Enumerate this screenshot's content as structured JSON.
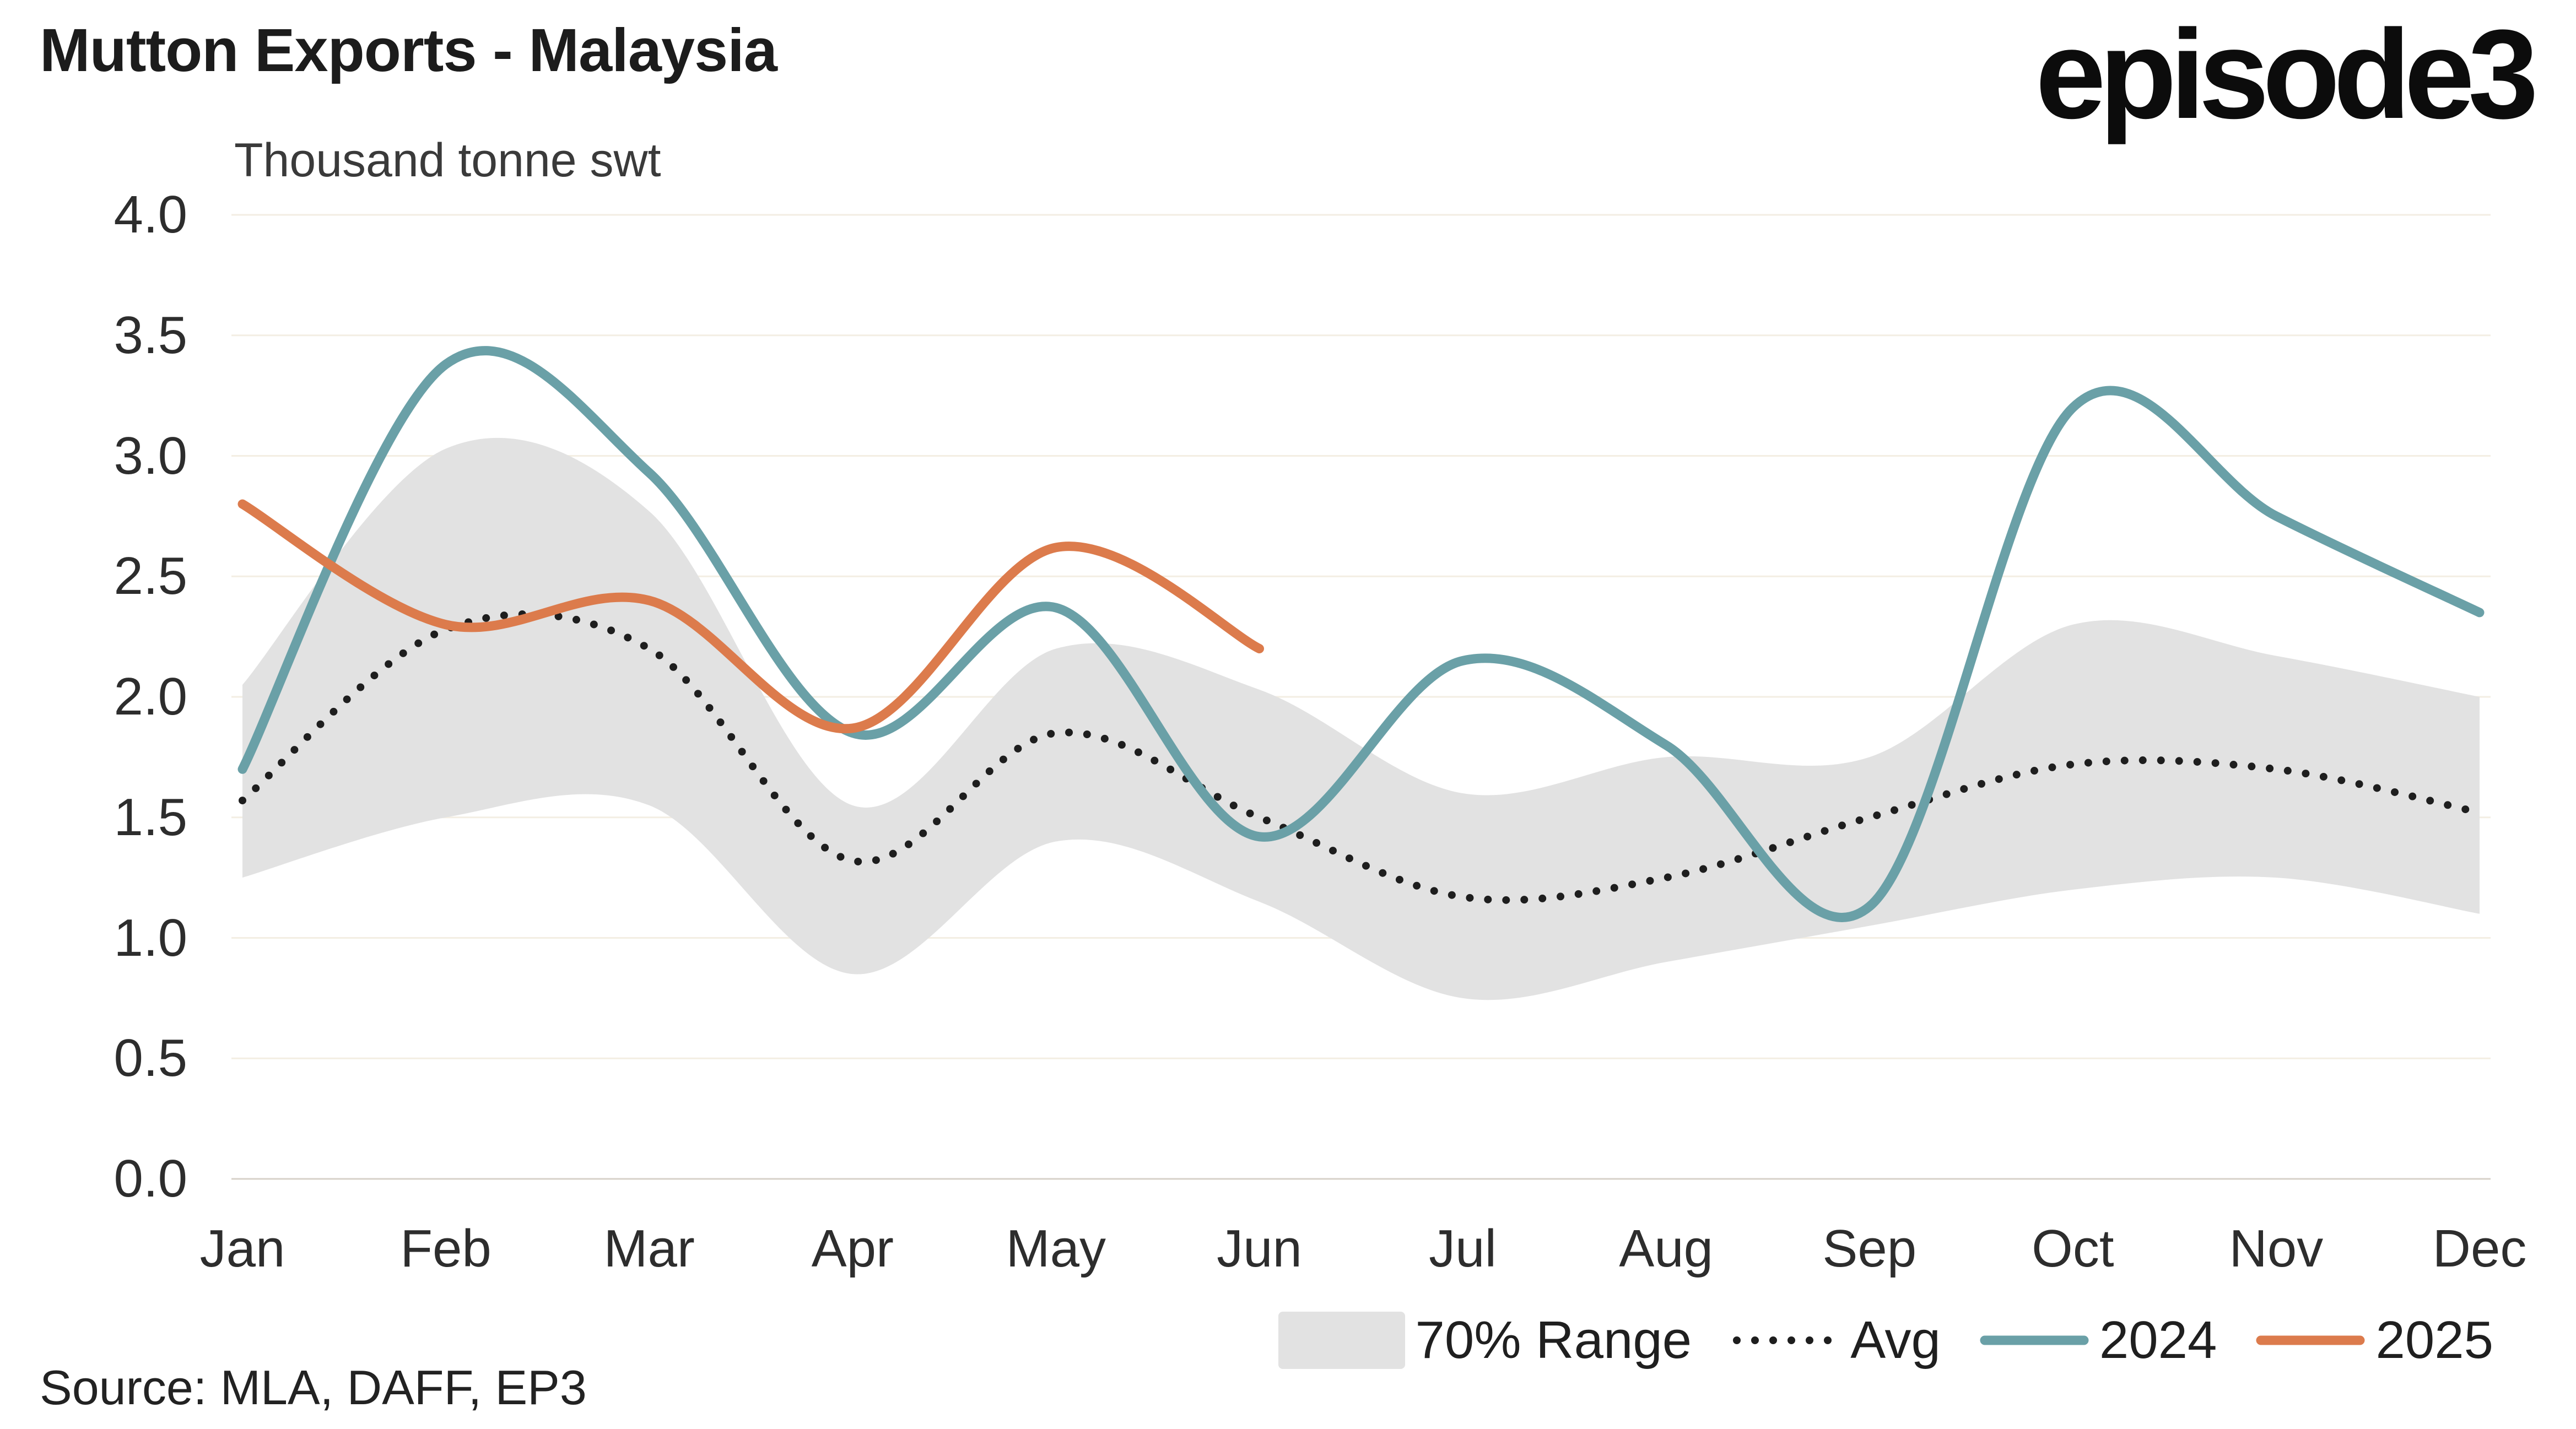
{
  "header": {
    "title": "Mutton Exports - Malaysia",
    "units": "Thousand tonne swt",
    "logo_text": "episode3"
  },
  "footer": {
    "source": "Source: MLA, DAFF, EP3"
  },
  "legend": [
    {
      "label": "70% Range",
      "color": "#e2e2e2",
      "style": "band"
    },
    {
      "label": "Avg",
      "color": "#1e1e1e",
      "style": "dotted"
    },
    {
      "label": "2024",
      "color": "#6aa0a7",
      "style": "solid"
    },
    {
      "label": "2025",
      "color": "#dc7b4c",
      "style": "solid"
    }
  ],
  "chart_data": {
    "type": "line",
    "title": "Mutton Exports - Malaysia",
    "ylabel": "Thousand tonne swt",
    "categories": [
      "Jan",
      "Feb",
      "Mar",
      "Apr",
      "May",
      "Jun",
      "Jul",
      "Aug",
      "Sep",
      "Oct",
      "Nov",
      "Dec"
    ],
    "yticks": [
      "0.0",
      "0.5",
      "1.0",
      "1.5",
      "2.0",
      "2.5",
      "3.0",
      "3.5",
      "4.0"
    ],
    "ylim": [
      0.0,
      4.0
    ],
    "ytick_step": 0.5,
    "grid": true,
    "legend_position": "bottom",
    "band": {
      "name": "70% Range",
      "color": "#e2e2e2",
      "upper": [
        2.05,
        3.03,
        2.77,
        1.55,
        2.2,
        2.03,
        1.6,
        1.75,
        1.75,
        2.3,
        2.17,
        2.0
      ],
      "lower": [
        1.25,
        1.5,
        1.55,
        0.85,
        1.4,
        1.15,
        0.75,
        0.9,
        1.05,
        1.2,
        1.25,
        1.1
      ]
    },
    "series": [
      {
        "name": "Avg",
        "style": "dotted",
        "color": "#1e1e1e",
        "values": [
          1.57,
          2.28,
          2.2,
          1.32,
          1.85,
          1.5,
          1.17,
          1.25,
          1.5,
          1.72,
          1.7,
          1.52
        ]
      },
      {
        "name": "2024",
        "style": "solid",
        "color": "#6aa0a7",
        "values": [
          1.7,
          3.38,
          2.93,
          1.85,
          2.37,
          1.42,
          2.15,
          1.8,
          1.13,
          3.2,
          2.75,
          2.35
        ]
      },
      {
        "name": "2025",
        "style": "solid",
        "color": "#dc7b4c",
        "values": [
          2.8,
          2.3,
          2.4,
          1.87,
          2.62,
          2.2,
          null,
          null,
          null,
          null,
          null,
          null
        ]
      }
    ],
    "colors": {
      "gridline": "#f3eee3",
      "axis": "#d7d2c9"
    }
  }
}
